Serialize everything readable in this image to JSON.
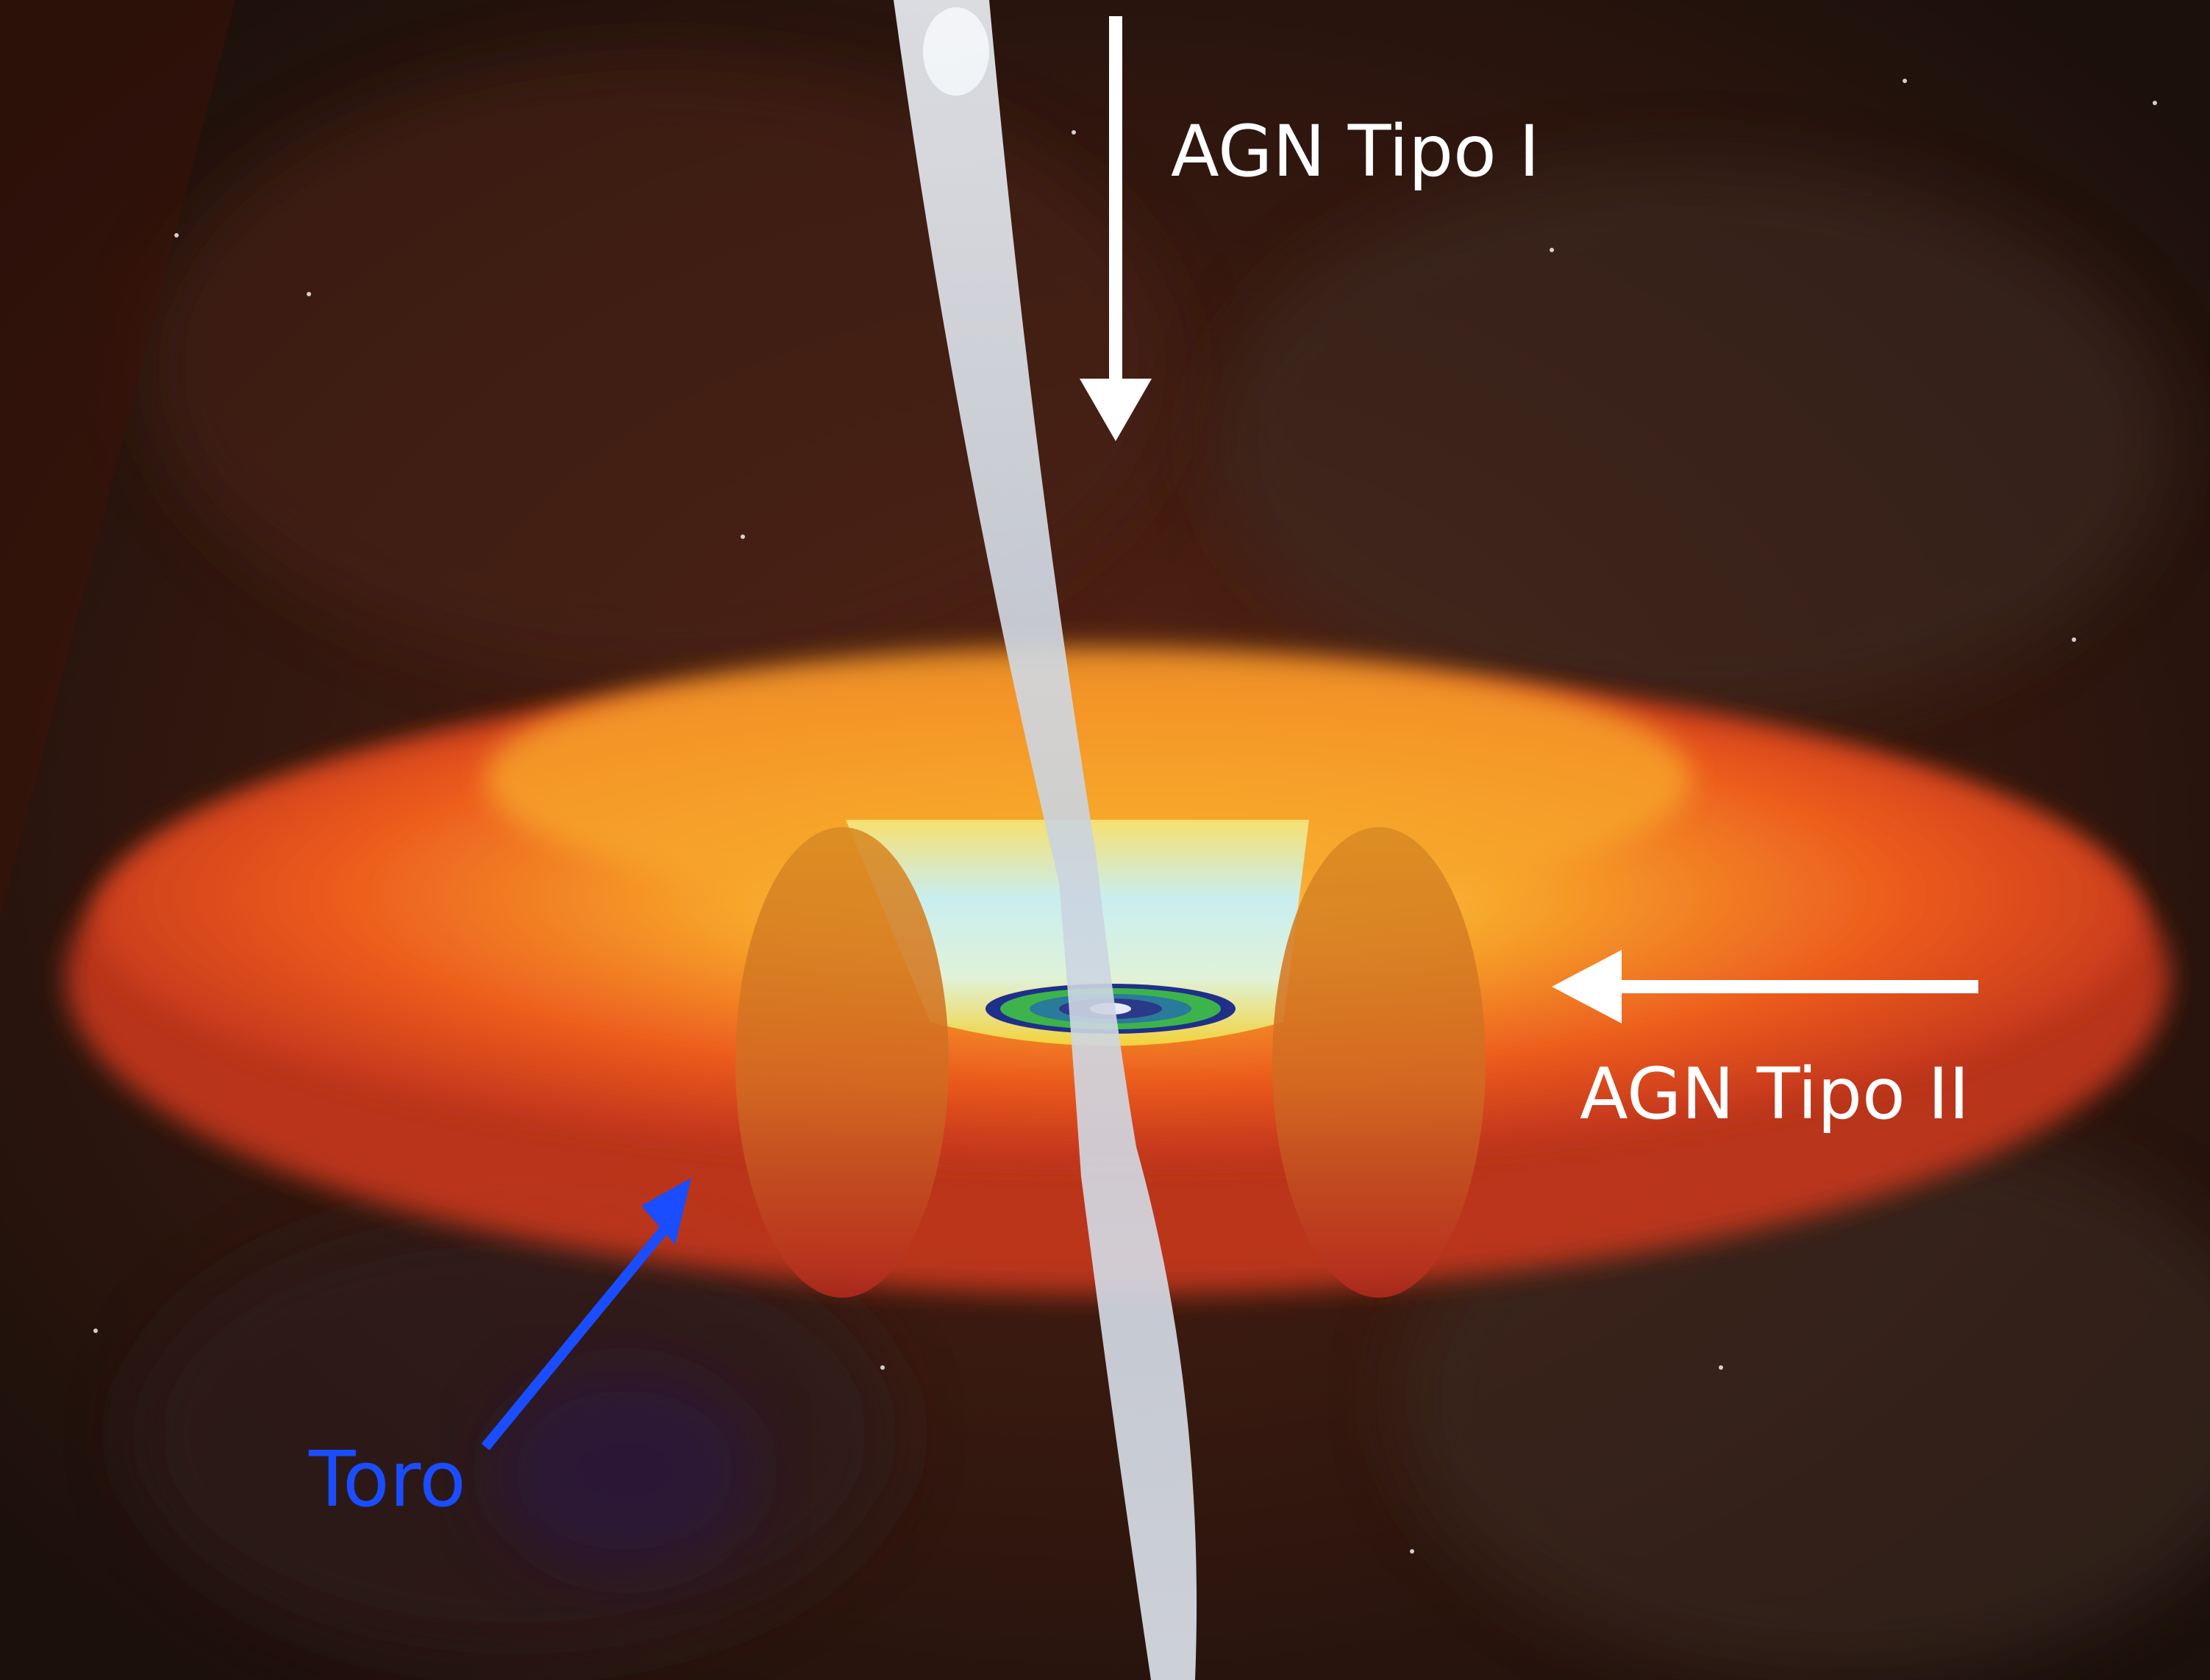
{
  "annotations": {
    "type1_label": "AGN Tipo I",
    "type2_label": "AGN Tipo II",
    "torus_label": "Toro"
  },
  "colors": {
    "type1_arrow": "#ffffff",
    "type2_arrow": "#ffffff",
    "torus_arrow": "#1a4dff",
    "background": "#24140e",
    "torus_outer": "#e8501e",
    "torus_inner": "#f5a623",
    "jet": "#d8e2ee",
    "accretion_disk": "#3cb44b"
  },
  "icons": {
    "type1_arrow": "arrow-down-icon",
    "type2_arrow": "arrow-left-icon",
    "torus_arrow": "arrow-up-right-icon"
  }
}
